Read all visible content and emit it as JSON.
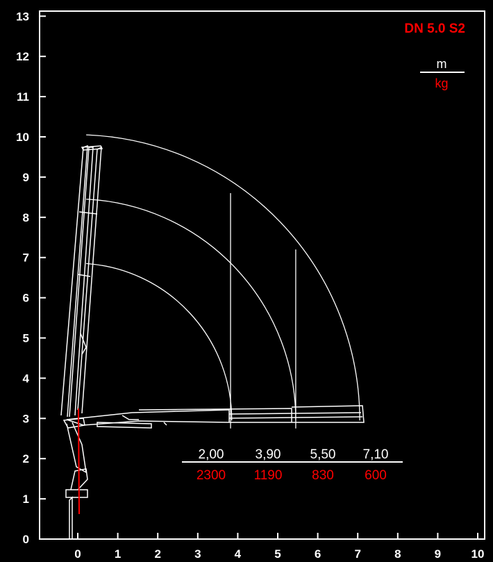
{
  "chart_data": {
    "type": "line",
    "title": "DN 5.0 S2",
    "unit_top": "m",
    "unit_bottom": "kg",
    "xlim": [
      -0.9,
      10
    ],
    "ylim": [
      0,
      13
    ],
    "x_ticks": [
      "0",
      "1",
      "2",
      "3",
      "4",
      "5",
      "6",
      "7",
      "8",
      "9",
      "10"
    ],
    "y_ticks": [
      "0",
      "1",
      "2",
      "3",
      "4",
      "5",
      "6",
      "7",
      "8",
      "9",
      "10",
      "11",
      "12",
      "13"
    ],
    "reach_arcs": [
      {
        "radius": 3.9,
        "center": [
          -0.05,
          2.95
        ]
      },
      {
        "radius": 5.5,
        "center": [
          -0.05,
          2.95
        ]
      },
      {
        "radius": 7.1,
        "center": [
          -0.05,
          2.95
        ]
      }
    ],
    "vertical_markers": [
      {
        "x": 3.82,
        "y_top": 8.6
      },
      {
        "x": 5.45,
        "y_top": 7.2
      }
    ],
    "load_table": {
      "reach": [
        "2,00",
        "3,90",
        "5,50",
        "7,10"
      ],
      "load": [
        "2300",
        "1190",
        "830",
        "600"
      ]
    },
    "colors": {
      "background": "#000000",
      "line": "#ffffff",
      "title": "#ff0000",
      "load": "#ff0000"
    }
  }
}
